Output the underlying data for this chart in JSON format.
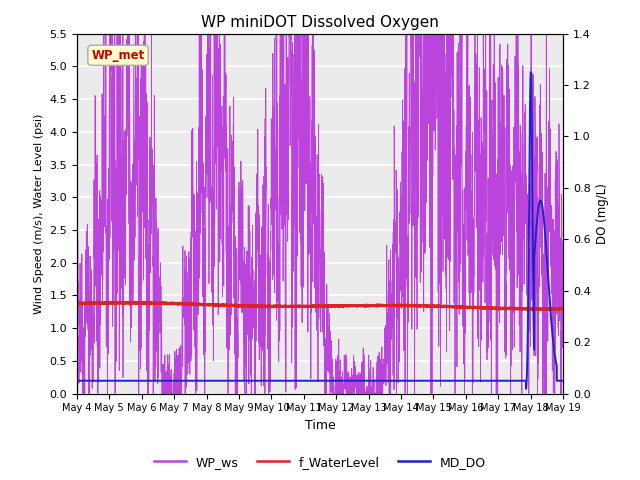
{
  "title": "WP miniDOT Dissolved Oxygen",
  "ylabel_left": "Wind Speed (m/s), Water Level (psi)",
  "ylabel_right": "DO (mg/L)",
  "xlabel": "Time",
  "annotation_text": "WP_met",
  "annotation_color": "#cc0000",
  "annotation_bg": "#ffffcc",
  "annotation_border": "#aaaaaa",
  "ylim_left": [
    0.0,
    5.5
  ],
  "ylim_right": [
    0.0,
    1.4
  ],
  "xtick_labels": [
    "May 4",
    "May 5",
    "May 6",
    "May 7",
    "May 8",
    "May 9",
    "May 10",
    "May 11",
    "May 12",
    "May 13",
    "May 14",
    "May 15",
    "May 16",
    "May 17",
    "May 18",
    "May 19"
  ],
  "legend_labels": [
    "WP_ws",
    "f_WaterLevel",
    "MD_DO"
  ],
  "legend_colors": [
    "#bb44dd",
    "#dd2222",
    "#2222cc"
  ],
  "ws_color": "#bb44dd",
  "wl_color": "#dd2222",
  "do_color": "#2222cc",
  "background_color": "#ebebeb",
  "grid_color": "#ffffff",
  "n_days": 15,
  "seed": 42
}
